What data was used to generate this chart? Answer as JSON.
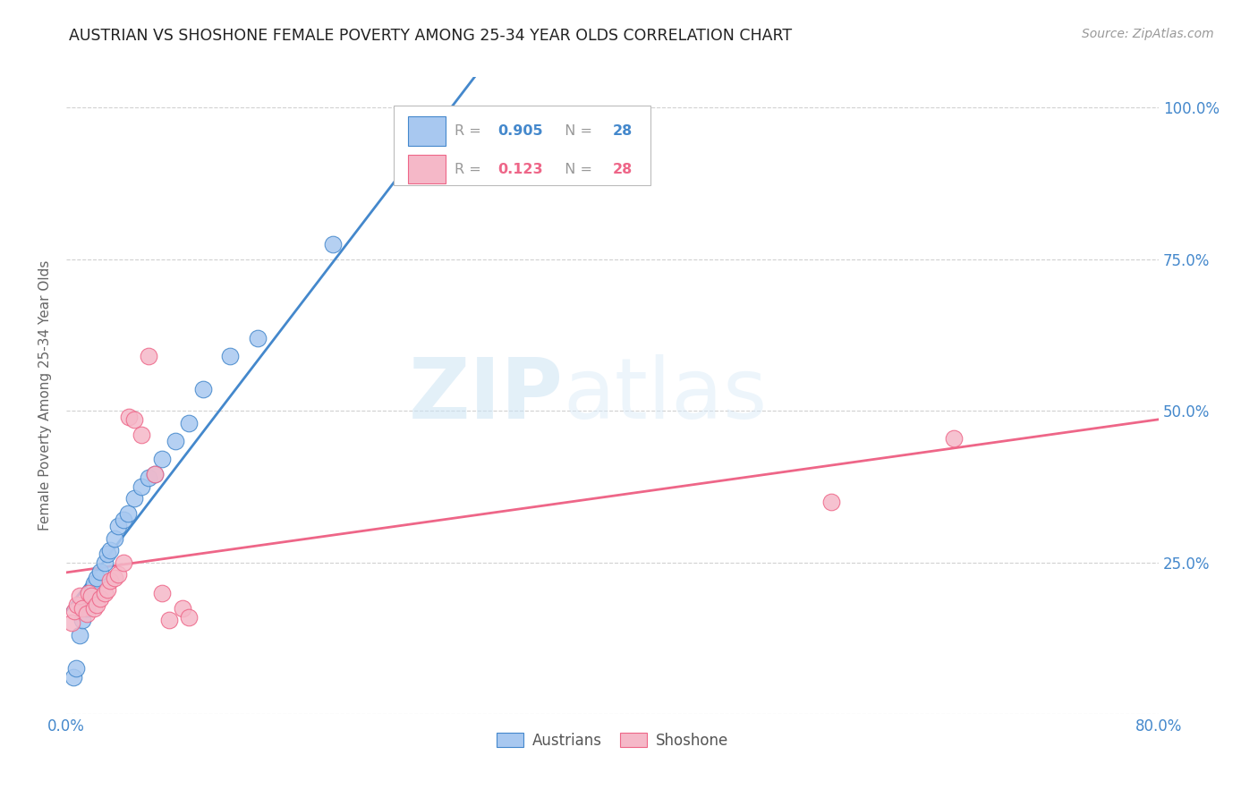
{
  "title": "AUSTRIAN VS SHOSHONE FEMALE POVERTY AMONG 25-34 YEAR OLDS CORRELATION CHART",
  "source": "Source: ZipAtlas.com",
  "ylabel": "Female Poverty Among 25-34 Year Olds",
  "xlim": [
    0.0,
    0.8
  ],
  "ylim": [
    0.0,
    1.05
  ],
  "austrians_color": "#a8c8f0",
  "shoshone_color": "#f5b8c8",
  "trendline_austrians_color": "#4488cc",
  "trendline_shoshone_color": "#ee6688",
  "legend_R_austrians": "0.905",
  "legend_N_austrians": "28",
  "legend_R_shoshone": "0.123",
  "legend_N_shoshone": "28",
  "watermark_zip": "ZIP",
  "watermark_atlas": "atlas",
  "background_color": "#ffffff",
  "grid_color": "#cccccc",
  "austrians_x": [
    0.005,
    0.007,
    0.01,
    0.012,
    0.015,
    0.018,
    0.02,
    0.022,
    0.025,
    0.028,
    0.03,
    0.032,
    0.035,
    0.038,
    0.042,
    0.045,
    0.05,
    0.055,
    0.06,
    0.065,
    0.07,
    0.08,
    0.09,
    0.1,
    0.12,
    0.14,
    0.195,
    0.32
  ],
  "austrians_y": [
    0.06,
    0.075,
    0.13,
    0.155,
    0.175,
    0.2,
    0.215,
    0.225,
    0.235,
    0.25,
    0.265,
    0.27,
    0.29,
    0.31,
    0.32,
    0.33,
    0.355,
    0.375,
    0.39,
    0.395,
    0.42,
    0.45,
    0.48,
    0.535,
    0.59,
    0.62,
    0.775,
    0.97
  ],
  "shoshone_x": [
    0.004,
    0.006,
    0.008,
    0.01,
    0.012,
    0.015,
    0.016,
    0.018,
    0.02,
    0.022,
    0.025,
    0.028,
    0.03,
    0.032,
    0.035,
    0.038,
    0.042,
    0.046,
    0.05,
    0.055,
    0.06,
    0.065,
    0.07,
    0.075,
    0.085,
    0.09,
    0.56,
    0.65
  ],
  "shoshone_y": [
    0.15,
    0.17,
    0.18,
    0.195,
    0.175,
    0.165,
    0.2,
    0.195,
    0.175,
    0.18,
    0.19,
    0.2,
    0.205,
    0.22,
    0.225,
    0.23,
    0.25,
    0.49,
    0.485,
    0.46,
    0.59,
    0.395,
    0.2,
    0.155,
    0.175,
    0.16,
    0.35,
    0.455
  ]
}
